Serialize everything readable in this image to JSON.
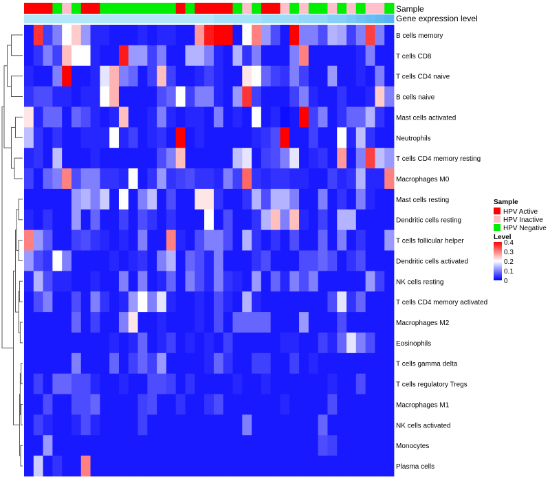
{
  "chart_data": {
    "type": "heatmap",
    "annotation_titles": {
      "sample": "Sample",
      "gene_expression": "Gene expression level"
    },
    "legend": {
      "sample_title": "Sample",
      "sample_entries": [
        {
          "label": "HPV Active",
          "color": "#ff0000"
        },
        {
          "label": "HPV Inactive",
          "color": "#ffc0cb"
        },
        {
          "label": "HPV Negative",
          "color": "#00ee00"
        }
      ],
      "level_title": "Level",
      "level_ticks": [
        "0.4",
        "0.3",
        "0.2",
        "0.1",
        "0"
      ],
      "level_tick_values": [
        0.4,
        0.3,
        0.2,
        0.1,
        0.0
      ],
      "color_scale": {
        "low": "#0000ff",
        "mid": "#ffffff",
        "high": "#ff0000",
        "min": 0.0,
        "mid_value": 0.2,
        "max": 0.4
      }
    },
    "sample_groups": [
      "A",
      "A",
      "A",
      "N",
      "I",
      "N",
      "A",
      "A",
      "N",
      "N",
      "N",
      "N",
      "N",
      "N",
      "N",
      "N",
      "A",
      "N",
      "A",
      "A",
      "A",
      "A",
      "N",
      "I",
      "N",
      "A",
      "A",
      "I",
      "N",
      "I",
      "N",
      "N",
      "I",
      "N",
      "I",
      "N",
      "I",
      "I",
      "N"
    ],
    "gene_expression_colors": [
      "#b3e8fb",
      "#b3e8fb",
      "#b3e8fb",
      "#b3e8fb",
      "#b3e8fb",
      "#b3e8fb",
      "#b3e8fb",
      "#b3e8fb",
      "#b3e8fb",
      "#b3e8fb",
      "#b3e8fb",
      "#b3e8fb",
      "#b3e8fb",
      "#b3e8fb",
      "#b3e8fb",
      "#b3e8fb",
      "#b3e8fb",
      "#b3e8fb",
      "#b3e8fb",
      "#b3e8fb",
      "#a6e1fa",
      "#a6e1fa",
      "#a6e1fa",
      "#a6e1fa",
      "#a6e1fa",
      "#9cdcf9",
      "#9cdcf9",
      "#9cdcf9",
      "#9cdcf9",
      "#92d6f8",
      "#92d6f8",
      "#92d6f8",
      "#86cff7",
      "#86cff7",
      "#7ac9f6",
      "#6fc3f5",
      "#66bef4",
      "#5fbaf4",
      "#57b5f3"
    ],
    "rows": [
      "B cells memory",
      "T cells CD8",
      "T cells CD4 naive",
      "B cells naive",
      "Mast cells activated",
      "Neutrophils",
      "T cells CD4 memory resting",
      "Macrophages M0",
      "Mast cells resting",
      "Dendritic cells resting",
      "T cells follicular helper",
      "Dendritic cells activated",
      "NK cells resting",
      "T cells CD4 memory activated",
      "Macrophages M2",
      "Eosinophils",
      "T cells gamma delta",
      "T cells regulatory  Tregs",
      "Macrophages M1",
      "NK cells activated",
      "Monocytes",
      "Plasma cells"
    ],
    "values": [
      [
        0.02,
        0.36,
        0.05,
        0.1,
        0.2,
        0.24,
        0.12,
        0.03,
        0.03,
        0.02,
        0.02,
        0.02,
        0.03,
        0.02,
        0.03,
        0.03,
        0.02,
        0.02,
        0.28,
        0.38,
        0.4,
        0.4,
        0.02,
        0.2,
        0.3,
        0.12,
        0.06,
        0.02,
        0.4,
        0.1,
        0.1,
        0.06,
        0.14,
        0.13,
        0.05,
        0.1,
        0.35,
        0.1,
        0.02
      ],
      [
        0.02,
        0.04,
        0.1,
        0.05,
        0.25,
        0.2,
        0.2,
        0.03,
        0.02,
        0.02,
        0.38,
        0.12,
        0.12,
        0.05,
        0.1,
        0.02,
        0.02,
        0.14,
        0.14,
        0.1,
        0.03,
        0.02,
        0.14,
        0.04,
        0.1,
        0.02,
        0.02,
        0.02,
        0.1,
        0.3,
        0.02,
        0.02,
        0.02,
        0.02,
        0.02,
        0.03,
        0.1,
        0.02,
        0.02
      ],
      [
        0.03,
        0.02,
        0.02,
        0.1,
        0.4,
        0.02,
        0.02,
        0.03,
        0.18,
        0.26,
        0.1,
        0.08,
        0.02,
        0.05,
        0.25,
        0.05,
        0.02,
        0.02,
        0.03,
        0.05,
        0.03,
        0.02,
        0.02,
        0.22,
        0.2,
        0.08,
        0.05,
        0.04,
        0.1,
        0.05,
        0.02,
        0.02,
        0.12,
        0.02,
        0.02,
        0.03,
        0.02,
        0.1,
        0.02
      ],
      [
        0.04,
        0.06,
        0.06,
        0.03,
        0.03,
        0.02,
        0.03,
        0.03,
        0.2,
        0.26,
        0.02,
        0.02,
        0.02,
        0.02,
        0.06,
        0.08,
        0.2,
        0.05,
        0.1,
        0.1,
        0.03,
        0.02,
        0.12,
        0.36,
        0.05,
        0.02,
        0.02,
        0.02,
        0.05,
        0.1,
        0.03,
        0.02,
        0.02,
        0.04,
        0.02,
        0.02,
        0.03,
        0.24,
        0.1
      ],
      [
        0.22,
        0.03,
        0.08,
        0.08,
        0.02,
        0.08,
        0.06,
        0.03,
        0.02,
        0.03,
        0.25,
        0.02,
        0.02,
        0.03,
        0.1,
        0.03,
        0.02,
        0.03,
        0.03,
        0.02,
        0.1,
        0.02,
        0.03,
        0.02,
        0.2,
        0.02,
        0.03,
        0.01,
        0.02,
        0.4,
        0.05,
        0.1,
        0.02,
        0.04,
        0.08,
        0.08,
        0.14,
        0.04,
        0.02
      ],
      [
        0.15,
        0.04,
        0.02,
        0.04,
        0.02,
        0.02,
        0.03,
        0.03,
        0.03,
        0.2,
        0.03,
        0.05,
        0.02,
        0.03,
        0.04,
        0.02,
        0.4,
        0.02,
        0.03,
        0.02,
        0.02,
        0.02,
        0.02,
        0.02,
        0.03,
        0.04,
        0.06,
        0.4,
        0.02,
        0.02,
        0.05,
        0.02,
        0.02,
        0.2,
        0.03,
        0.15,
        0.04,
        0.02,
        0.02
      ],
      [
        0.03,
        0.04,
        0.02,
        0.15,
        0.02,
        0.02,
        0.02,
        0.03,
        0.02,
        0.02,
        0.02,
        0.02,
        0.02,
        0.02,
        0.06,
        0.1,
        0.25,
        0.02,
        0.02,
        0.02,
        0.02,
        0.02,
        0.15,
        0.18,
        0.02,
        0.05,
        0.06,
        0.1,
        0.18,
        0.02,
        0.03,
        0.04,
        0.02,
        0.28,
        0.02,
        0.1,
        0.35,
        0.15,
        0.12
      ],
      [
        0.05,
        0.02,
        0.08,
        0.1,
        0.3,
        0.06,
        0.1,
        0.1,
        0.04,
        0.04,
        0.03,
        0.2,
        0.02,
        0.04,
        0.12,
        0.04,
        0.05,
        0.06,
        0.04,
        0.04,
        0.03,
        0.1,
        0.05,
        0.32,
        0.04,
        0.03,
        0.04,
        0.04,
        0.03,
        0.03,
        0.02,
        0.02,
        0.05,
        0.03,
        0.04,
        0.14,
        0.03,
        0.03,
        0.3
      ],
      [
        0.02,
        0.02,
        0.02,
        0.02,
        0.02,
        0.12,
        0.14,
        0.1,
        0.16,
        0.02,
        0.2,
        0.02,
        0.1,
        0.15,
        0.02,
        0.06,
        0.02,
        0.02,
        0.22,
        0.22,
        0.04,
        0.02,
        0.02,
        0.04,
        0.14,
        0.06,
        0.14,
        0.14,
        0.1,
        0.02,
        0.02,
        0.1,
        0.02,
        0.04,
        0.02,
        0.1,
        0.03,
        0.02,
        0.02
      ],
      [
        0.03,
        0.02,
        0.04,
        0.02,
        0.02,
        0.12,
        0.02,
        0.08,
        0.02,
        0.02,
        0.05,
        0.02,
        0.06,
        0.04,
        0.02,
        0.04,
        0.02,
        0.02,
        0.02,
        0.2,
        0.02,
        0.06,
        0.02,
        0.02,
        0.04,
        0.14,
        0.25,
        0.1,
        0.25,
        0.03,
        0.02,
        0.05,
        0.02,
        0.14,
        0.14,
        0.02,
        0.02,
        0.02,
        0.02
      ],
      [
        0.3,
        0.12,
        0.07,
        0.02,
        0.02,
        0.05,
        0.06,
        0.04,
        0.03,
        0.02,
        0.03,
        0.02,
        0.1,
        0.02,
        0.02,
        0.3,
        0.03,
        0.02,
        0.06,
        0.1,
        0.1,
        0.06,
        0.02,
        0.14,
        0.04,
        0.02,
        0.04,
        0.02,
        0.06,
        0.02,
        0.02,
        0.08,
        0.02,
        0.1,
        0.02,
        0.04,
        0.02,
        0.02,
        0.12
      ],
      [
        0.12,
        0.06,
        0.04,
        0.2,
        0.1,
        0.02,
        0.02,
        0.02,
        0.02,
        0.03,
        0.02,
        0.03,
        0.04,
        0.02,
        0.1,
        0.14,
        0.02,
        0.08,
        0.06,
        0.03,
        0.1,
        0.02,
        0.02,
        0.02,
        0.04,
        0.06,
        0.02,
        0.02,
        0.02,
        0.06,
        0.06,
        0.08,
        0.06,
        0.02,
        0.04,
        0.06,
        0.02,
        0.02,
        0.02
      ],
      [
        0.03,
        0.14,
        0.06,
        0.03,
        0.03,
        0.02,
        0.02,
        0.03,
        0.02,
        0.02,
        0.1,
        0.02,
        0.1,
        0.02,
        0.03,
        0.08,
        0.02,
        0.1,
        0.06,
        0.03,
        0.1,
        0.04,
        0.03,
        0.02,
        0.12,
        0.02,
        0.08,
        0.03,
        0.1,
        0.06,
        0.1,
        0.02,
        0.02,
        0.02,
        0.02,
        0.02,
        0.12,
        0.05,
        0.02
      ],
      [
        0.02,
        0.06,
        0.1,
        0.02,
        0.02,
        0.06,
        0.02,
        0.1,
        0.04,
        0.02,
        0.03,
        0.12,
        0.2,
        0.1,
        0.18,
        0.03,
        0.02,
        0.02,
        0.03,
        0.02,
        0.06,
        0.03,
        0.02,
        0.14,
        0.03,
        0.02,
        0.02,
        0.02,
        0.02,
        0.02,
        0.02,
        0.02,
        0.06,
        0.18,
        0.04,
        0.08,
        0.02,
        0.02,
        0.02
      ],
      [
        0.02,
        0.02,
        0.02,
        0.02,
        0.02,
        0.08,
        0.02,
        0.05,
        0.02,
        0.02,
        0.1,
        0.22,
        0.02,
        0.02,
        0.03,
        0.02,
        0.02,
        0.02,
        0.03,
        0.02,
        0.06,
        0.02,
        0.08,
        0.08,
        0.08,
        0.08,
        0.02,
        0.02,
        0.02,
        0.12,
        0.02,
        0.02,
        0.02,
        0.06,
        0.02,
        0.02,
        0.02,
        0.02,
        0.02
      ],
      [
        0.02,
        0.02,
        0.02,
        0.02,
        0.02,
        0.02,
        0.02,
        0.02,
        0.02,
        0.03,
        0.02,
        0.03,
        0.08,
        0.02,
        0.03,
        0.05,
        0.02,
        0.03,
        0.02,
        0.03,
        0.02,
        0.05,
        0.02,
        0.02,
        0.02,
        0.02,
        0.02,
        0.03,
        0.03,
        0.02,
        0.02,
        0.05,
        0.03,
        0.08,
        0.18,
        0.1,
        0.06,
        0.02,
        0.02
      ],
      [
        0.02,
        0.02,
        0.02,
        0.02,
        0.02,
        0.1,
        0.02,
        0.02,
        0.02,
        0.08,
        0.02,
        0.05,
        0.08,
        0.05,
        0.12,
        0.02,
        0.02,
        0.02,
        0.02,
        0.03,
        0.08,
        0.04,
        0.02,
        0.02,
        0.05,
        0.05,
        0.02,
        0.02,
        0.05,
        0.02,
        0.03,
        0.02,
        0.02,
        0.02,
        0.02,
        0.02,
        0.02,
        0.02,
        0.02
      ],
      [
        0.02,
        0.05,
        0.02,
        0.08,
        0.08,
        0.06,
        0.06,
        0.03,
        0.02,
        0.02,
        0.03,
        0.02,
        0.02,
        0.06,
        0.06,
        0.05,
        0.02,
        0.04,
        0.02,
        0.02,
        0.02,
        0.02,
        0.03,
        0.02,
        0.02,
        0.03,
        0.02,
        0.02,
        0.02,
        0.02,
        0.02,
        0.02,
        0.03,
        0.02,
        0.02,
        0.06,
        0.02,
        0.02,
        0.02
      ],
      [
        0.02,
        0.02,
        0.06,
        0.02,
        0.02,
        0.06,
        0.06,
        0.08,
        0.02,
        0.02,
        0.02,
        0.02,
        0.05,
        0.06,
        0.02,
        0.02,
        0.04,
        0.02,
        0.02,
        0.04,
        0.06,
        0.02,
        0.02,
        0.02,
        0.02,
        0.02,
        0.02,
        0.03,
        0.02,
        0.02,
        0.02,
        0.02,
        0.06,
        0.02,
        0.02,
        0.02,
        0.02,
        0.02,
        0.02
      ],
      [
        0.02,
        0.05,
        0.03,
        0.02,
        0.02,
        0.03,
        0.06,
        0.03,
        0.02,
        0.02,
        0.02,
        0.02,
        0.05,
        0.02,
        0.02,
        0.02,
        0.02,
        0.02,
        0.02,
        0.02,
        0.02,
        0.02,
        0.02,
        0.1,
        0.02,
        0.02,
        0.02,
        0.02,
        0.02,
        0.02,
        0.02,
        0.08,
        0.02,
        0.02,
        0.02,
        0.02,
        0.02,
        0.02,
        0.02
      ],
      [
        0.02,
        0.02,
        0.12,
        0.02,
        0.02,
        0.02,
        0.02,
        0.02,
        0.02,
        0.02,
        0.02,
        0.02,
        0.02,
        0.02,
        0.02,
        0.02,
        0.02,
        0.02,
        0.02,
        0.02,
        0.02,
        0.02,
        0.02,
        0.02,
        0.02,
        0.02,
        0.02,
        0.02,
        0.02,
        0.02,
        0.02,
        0.06,
        0.05,
        0.02,
        0.02,
        0.02,
        0.02,
        0.02,
        0.02
      ],
      [
        0.02,
        0.16,
        0.02,
        0.04,
        0.02,
        0.02,
        0.3,
        0.02,
        0.02,
        0.02,
        0.02,
        0.02,
        0.02,
        0.02,
        0.02,
        0.02,
        0.02,
        0.02,
        0.02,
        0.02,
        0.02,
        0.02,
        0.02,
        0.02,
        0.02,
        0.02,
        0.02,
        0.02,
        0.02,
        0.02,
        0.02,
        0.02,
        0.02,
        0.02,
        0.02,
        0.02,
        0.02,
        0.02,
        0.02
      ]
    ]
  }
}
